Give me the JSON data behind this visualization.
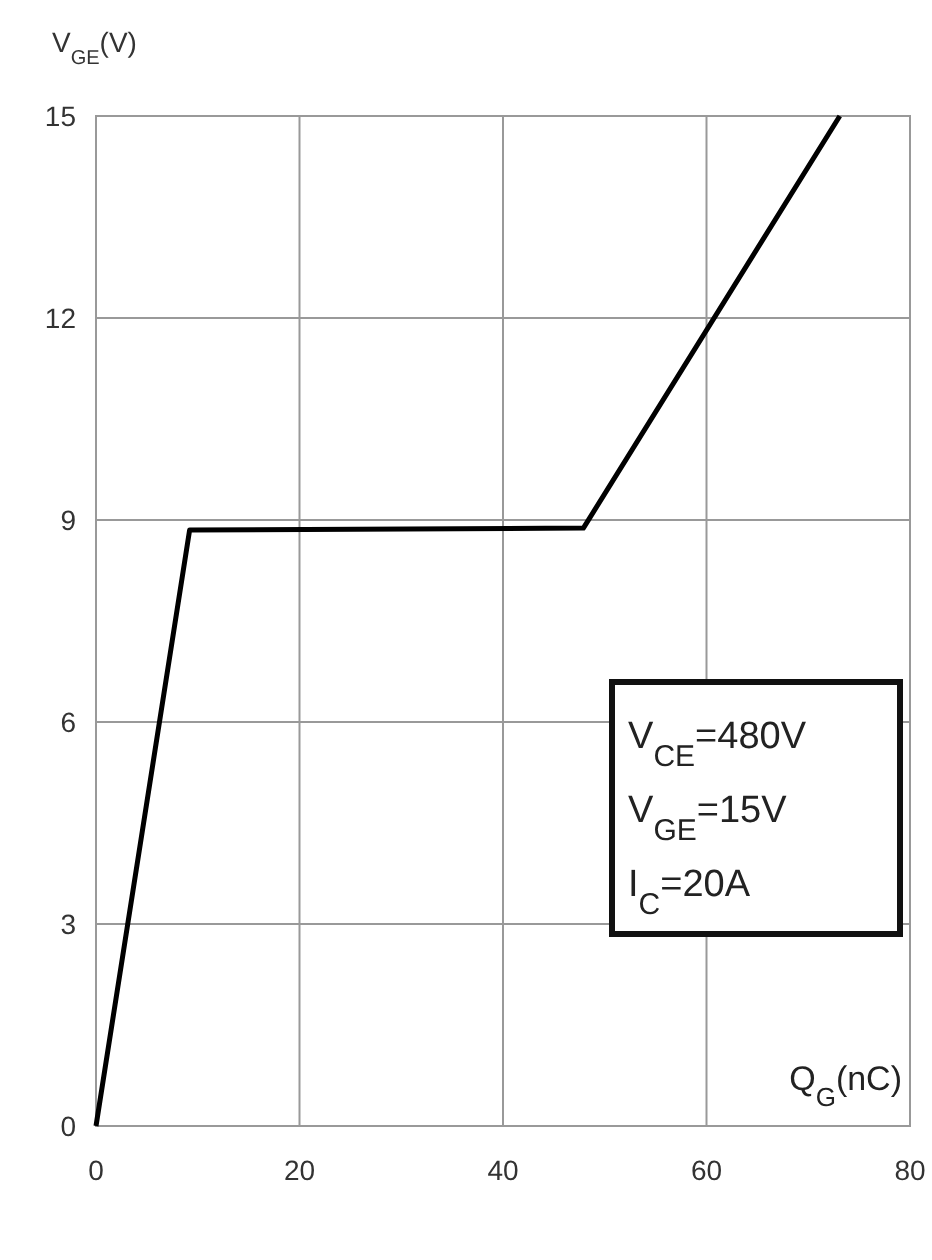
{
  "chart_data": {
    "type": "line",
    "xlabel": "Q$_{G}$(nC)",
    "ylabel": "V$_{GE}$(V)",
    "x": [
      0,
      9.2,
      47.9,
      73.1
    ],
    "series": [
      {
        "color": "#000000",
        "values": [
          0,
          8.85,
          8.88,
          15
        ]
      }
    ],
    "xlim": [
      0,
      80
    ],
    "xticks": [
      0,
      20,
      40,
      60,
      80
    ],
    "ylim": [
      0,
      15
    ],
    "yticks": [
      0,
      3,
      6,
      9,
      12,
      15
    ],
    "grid": true,
    "marker": "none",
    "line_style": "solid",
    "annotations": [
      "V$_{CE}$=480V",
      "V$_{GE}$=15V",
      "I$_{C}$=20A"
    ]
  }
}
